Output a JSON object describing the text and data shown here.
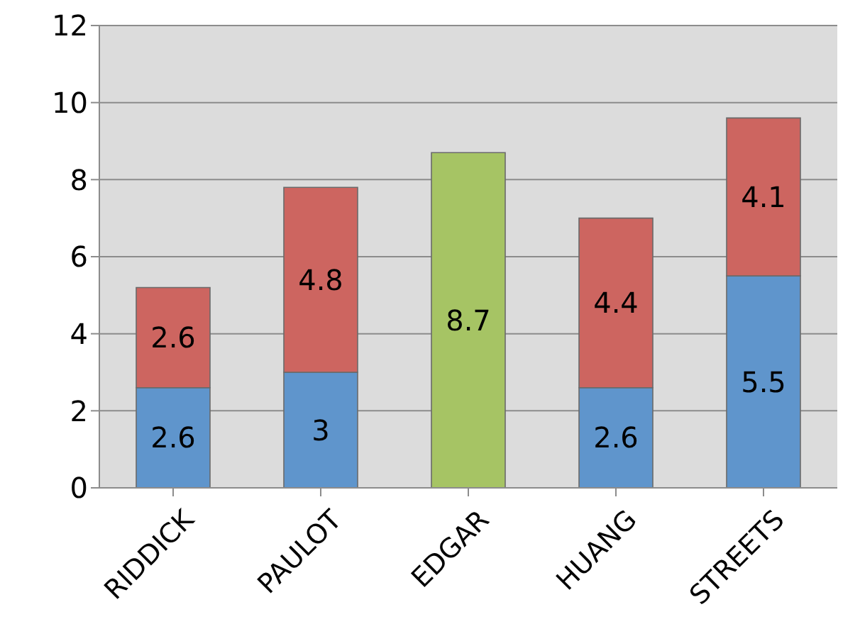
{
  "chart_data": {
    "type": "bar",
    "stacked": true,
    "categories": [
      "RIDDICK",
      "PAULOT",
      "EDGAR",
      "HUANG",
      "STREETS"
    ],
    "series": [
      {
        "color": "#5f95cc",
        "values": [
          2.6,
          3,
          null,
          2.6,
          5.5
        ]
      },
      {
        "color": "#cd6560",
        "values": [
          2.6,
          4.8,
          null,
          4.4,
          4.1
        ]
      },
      {
        "color": "#a6c464",
        "values": [
          null,
          null,
          8.7,
          null,
          null
        ]
      }
    ],
    "ylim": [
      0,
      12
    ],
    "yticks": [
      0,
      2,
      4,
      6,
      8,
      10,
      12
    ],
    "grid": "y",
    "data_labels": true,
    "legend": false
  }
}
